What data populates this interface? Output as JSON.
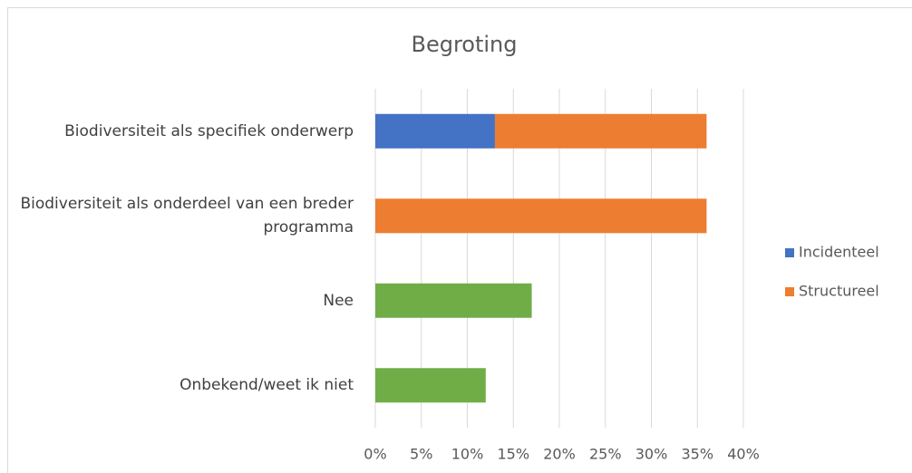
{
  "chart_data": {
    "type": "stacked-bar-horizontal",
    "title": "Begroting",
    "categories": [
      "Biodiversiteit als specifiek onderwerp",
      "Biodiversiteit als onderdeel van een breder programma",
      "Nee",
      "Onbekend/weet ik niet"
    ],
    "series": [
      {
        "name": "Incidenteel",
        "color": "#4472c4",
        "values": [
          13,
          null,
          null,
          null
        ]
      },
      {
        "name": "Structureel",
        "color": "#ed7d31",
        "values": [
          23,
          36,
          null,
          null
        ]
      },
      {
        "color": "#70ad47",
        "values": [
          null,
          null,
          17,
          12
        ]
      }
    ],
    "xlim": [
      0,
      40
    ],
    "xticks": [
      {
        "value": 0,
        "label": "0%"
      },
      {
        "value": 5,
        "label": "5%"
      },
      {
        "value": 10,
        "label": "10%"
      },
      {
        "value": 15,
        "label": "15%"
      },
      {
        "value": 20,
        "label": "20%"
      },
      {
        "value": 25,
        "label": "25%"
      },
      {
        "value": 30,
        "label": "30%"
      },
      {
        "value": 35,
        "label": "35%"
      },
      {
        "value": 40,
        "label": "40%"
      }
    ],
    "grid": true,
    "legend": "right"
  }
}
